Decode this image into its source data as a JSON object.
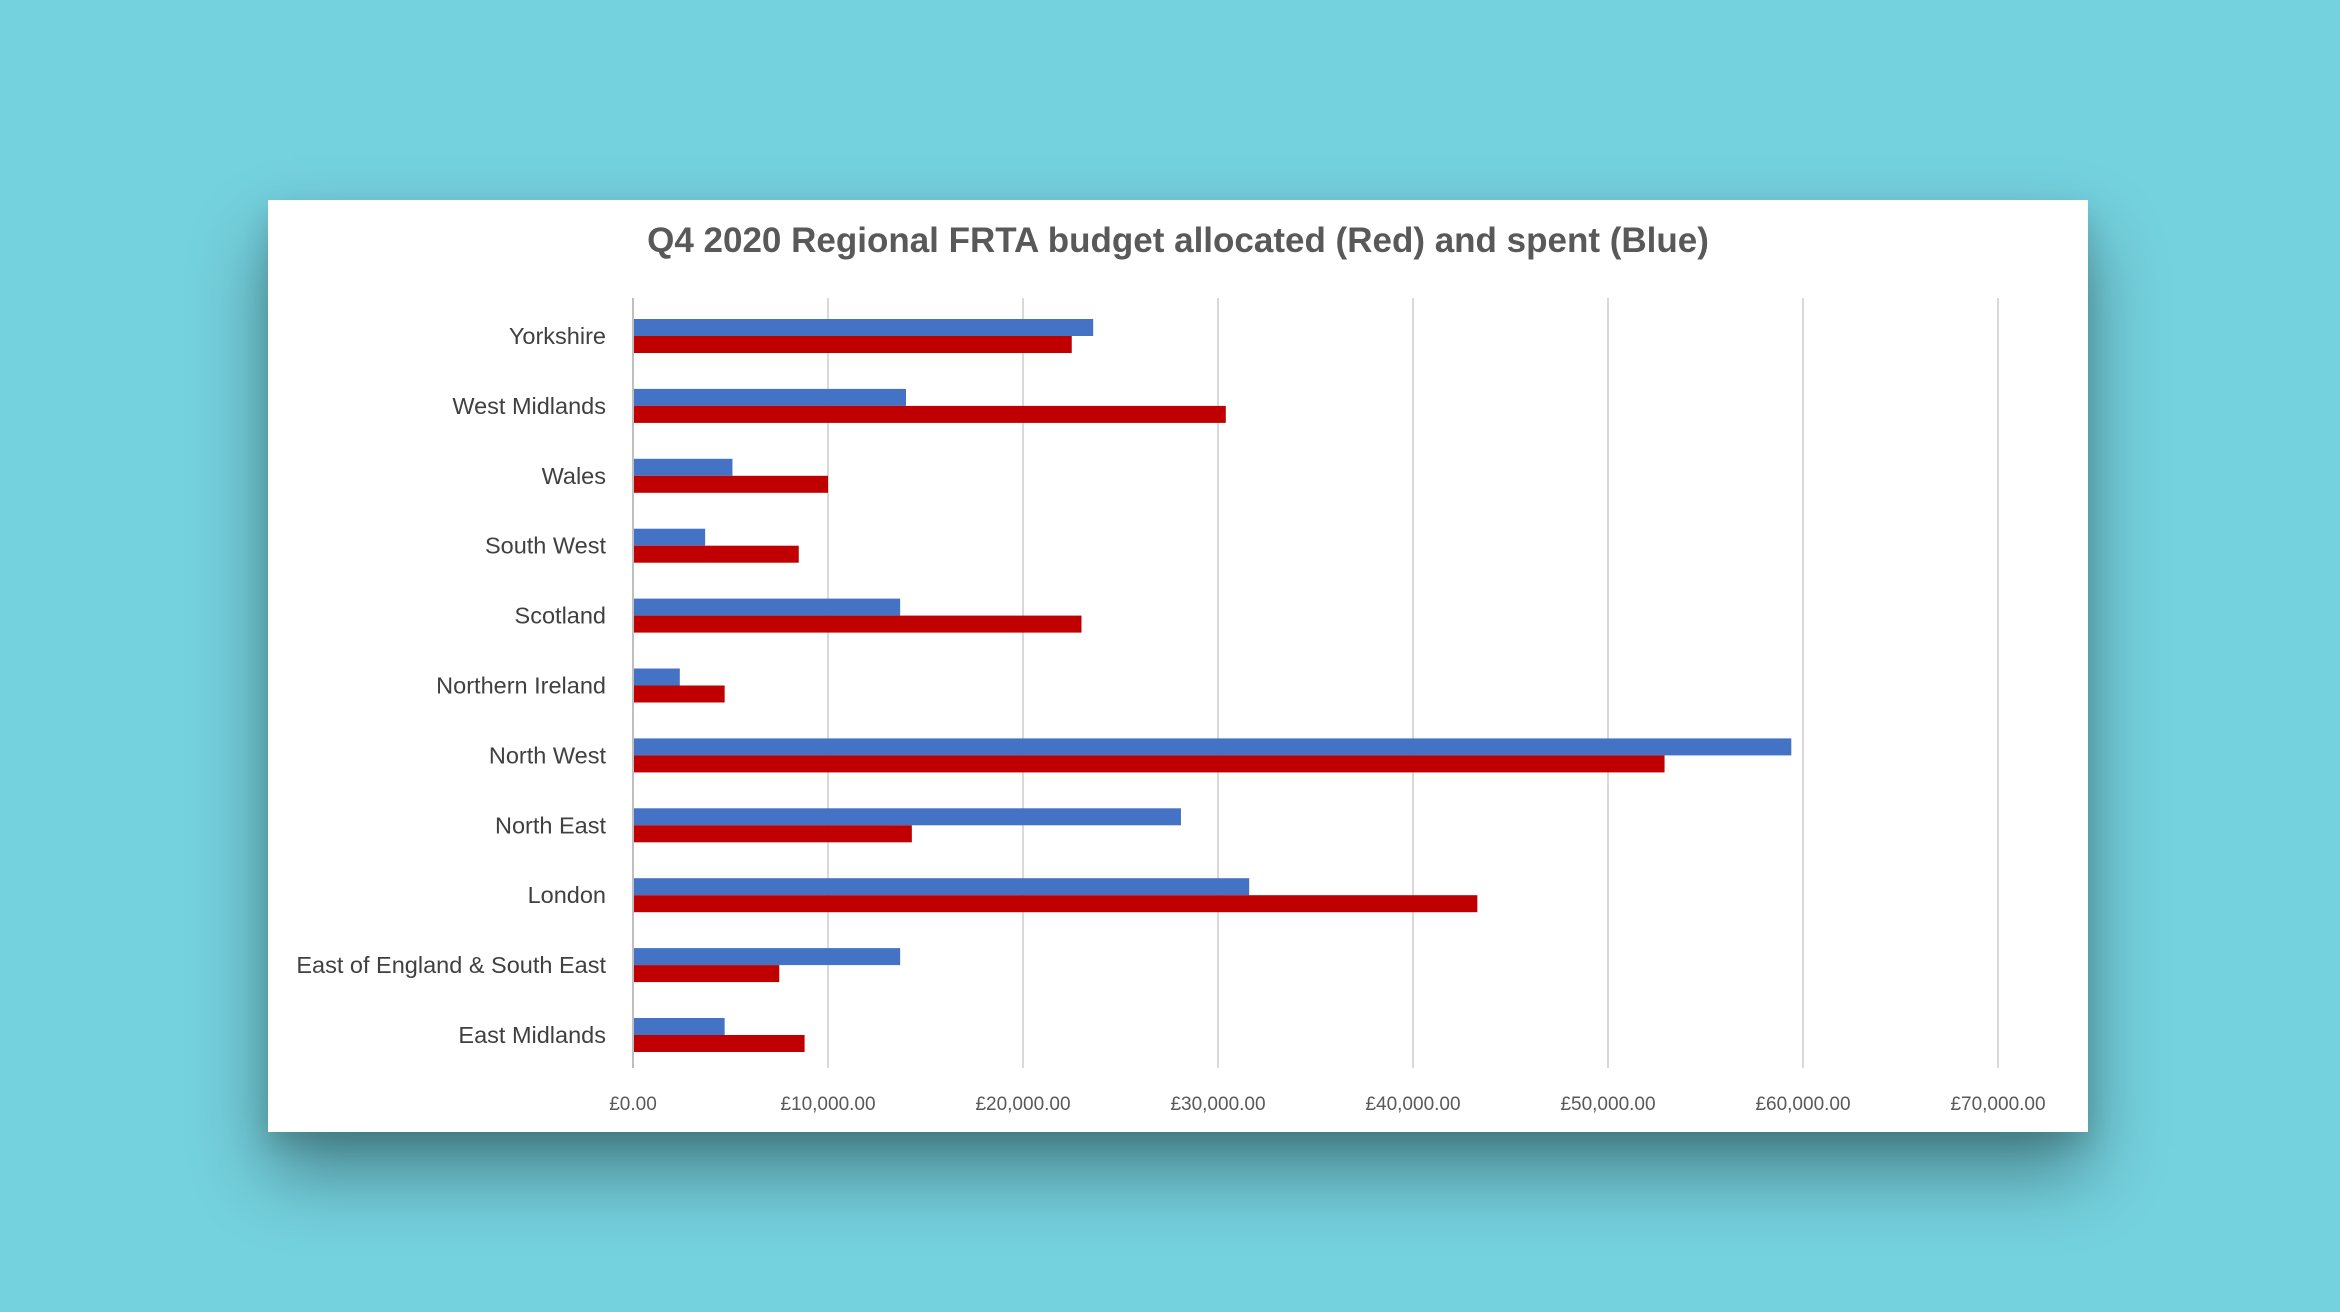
{
  "chart_data": {
    "type": "bar",
    "orientation": "horizontal",
    "title": "Q4 2020 Regional FRTA budget allocated (Red) and spent (Blue)",
    "xlabel": "",
    "ylabel": "",
    "categories": [
      "Yorkshire",
      "West Midlands",
      "Wales",
      "South West",
      "Scotland",
      "Northern Ireland",
      "North West",
      "North East",
      "London",
      "East of England & South East",
      "East Midlands"
    ],
    "series": [
      {
        "color": "#4472c4",
        "values": [
          23600,
          14000,
          5100,
          3700,
          13700,
          2400,
          59400,
          28100,
          31600,
          13700,
          4700
        ]
      },
      {
        "color": "#c00000",
        "values": [
          22500,
          30400,
          10000,
          8500,
          23000,
          4700,
          52900,
          14300,
          43300,
          7500,
          8800
        ]
      }
    ],
    "xlim": [
      0,
      70000
    ],
    "x_ticks": [
      0,
      10000,
      20000,
      30000,
      40000,
      50000,
      60000,
      70000
    ],
    "x_tick_labels": [
      "£0.00",
      "£10,000.00",
      "£20,000.00",
      "£30,000.00",
      "£40,000.00",
      "£50,000.00",
      "£60,000.00",
      "£70,000.00"
    ],
    "grid": true,
    "legend": "none"
  }
}
